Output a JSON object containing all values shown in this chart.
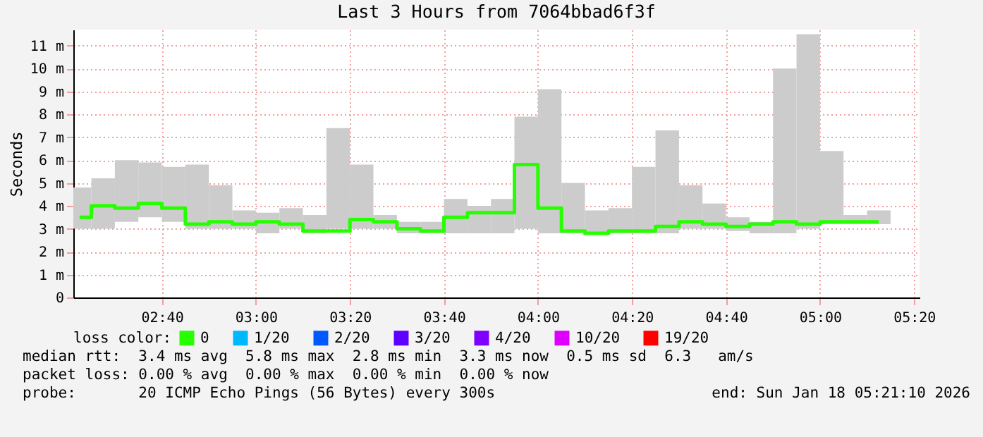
{
  "chart_data": {
    "type": "step",
    "title": "Last 3 Hours from 7064bbad6f3f",
    "ylabel": "Seconds",
    "legend_title": "loss color:",
    "x": [
      "2026-01-18T02:22:30",
      "2026-01-18T02:27:30",
      "2026-01-18T02:32:30",
      "2026-01-18T02:37:30",
      "2026-01-18T02:42:30",
      "2026-01-18T02:47:30",
      "2026-01-18T02:52:30",
      "2026-01-18T02:57:30",
      "2026-01-18T03:02:30",
      "2026-01-18T03:07:30",
      "2026-01-18T03:12:30",
      "2026-01-18T03:17:30",
      "2026-01-18T03:22:30",
      "2026-01-18T03:27:30",
      "2026-01-18T03:32:30",
      "2026-01-18T03:37:30",
      "2026-01-18T03:42:30",
      "2026-01-18T03:47:30",
      "2026-01-18T03:52:30",
      "2026-01-18T03:57:30",
      "2026-01-18T04:02:30",
      "2026-01-18T04:07:30",
      "2026-01-18T04:12:30",
      "2026-01-18T04:17:30",
      "2026-01-18T04:22:30",
      "2026-01-18T04:27:30",
      "2026-01-18T04:32:30",
      "2026-01-18T04:37:30",
      "2026-01-18T04:42:30",
      "2026-01-18T04:47:30",
      "2026-01-18T04:52:30",
      "2026-01-18T04:57:30",
      "2026-01-18T05:02:30",
      "2026-01-18T05:07:30",
      "2026-01-18T05:12:30"
    ],
    "series": [
      {
        "type": "bar",
        "color": "#cccccc",
        "base": [
          3.0,
          3.0,
          3.3,
          3.5,
          3.3,
          3.0,
          3.0,
          3.0,
          2.8,
          3.0,
          2.8,
          3.0,
          3.0,
          3.0,
          2.8,
          2.8,
          2.8,
          2.8,
          2.8,
          3.0,
          2.8,
          2.8,
          2.8,
          2.8,
          2.8,
          2.8,
          3.0,
          3.0,
          2.9,
          2.8,
          2.8,
          3.0,
          3.2,
          3.2,
          3.2
        ],
        "values": [
          1.8,
          2.2,
          2.7,
          2.4,
          2.4,
          2.8,
          1.9,
          0.8,
          0.9,
          0.9,
          0.8,
          4.4,
          2.8,
          0.6,
          0.5,
          0.5,
          1.5,
          1.2,
          1.5,
          4.9,
          6.3,
          2.2,
          1.0,
          1.1,
          2.9,
          4.5,
          1.9,
          1.1,
          0.6,
          0.5,
          7.2,
          8.5,
          3.2,
          0.4,
          0.6
        ]
      },
      {
        "name": "0",
        "color": "#26ff00",
        "values": [
          3.5,
          4.0,
          3.9,
          4.1,
          3.9,
          3.2,
          3.3,
          3.2,
          3.3,
          3.2,
          2.9,
          2.9,
          3.4,
          3.3,
          3.0,
          2.9,
          3.5,
          3.7,
          3.7,
          5.8,
          3.9,
          2.9,
          2.8,
          2.9,
          2.9,
          3.1,
          3.3,
          3.2,
          3.1,
          3.2,
          3.3,
          3.2,
          3.3,
          3.3,
          3.3
        ]
      },
      {
        "name": "1/20",
        "color": "#00b8ff",
        "values": [
          null,
          null,
          null,
          null,
          null,
          null,
          null,
          null,
          null,
          null,
          null,
          null,
          null,
          null,
          null,
          null,
          null,
          null,
          null,
          null,
          null,
          null,
          null,
          null,
          null,
          null,
          null,
          null,
          null,
          null,
          null,
          null,
          null,
          null,
          null
        ]
      },
      {
        "name": "2/20",
        "color": "#0059ff",
        "values": [
          null,
          null,
          null,
          null,
          null,
          null,
          null,
          null,
          null,
          null,
          null,
          null,
          null,
          null,
          null,
          null,
          null,
          null,
          null,
          null,
          null,
          null,
          null,
          null,
          null,
          null,
          null,
          null,
          null,
          null,
          null,
          null,
          null,
          null,
          null
        ]
      },
      {
        "name": "3/20",
        "color": "#5e00ff",
        "values": [
          null,
          null,
          null,
          null,
          null,
          null,
          null,
          null,
          null,
          null,
          null,
          null,
          null,
          null,
          null,
          null,
          null,
          null,
          null,
          null,
          null,
          null,
          null,
          null,
          null,
          null,
          null,
          null,
          null,
          null,
          null,
          null,
          null,
          null,
          null
        ]
      },
      {
        "name": "4/20",
        "color": "#7e00ff",
        "values": [
          null,
          null,
          null,
          null,
          null,
          null,
          null,
          null,
          null,
          null,
          null,
          null,
          null,
          null,
          null,
          null,
          null,
          null,
          null,
          null,
          null,
          null,
          null,
          null,
          null,
          null,
          null,
          null,
          null,
          null,
          null,
          null,
          null,
          null,
          null
        ]
      },
      {
        "name": "10/20",
        "color": "#dd00ff",
        "values": [
          null,
          null,
          null,
          null,
          null,
          null,
          null,
          null,
          null,
          null,
          null,
          null,
          null,
          null,
          null,
          null,
          null,
          null,
          null,
          null,
          null,
          null,
          null,
          null,
          null,
          null,
          null,
          null,
          null,
          null,
          null,
          null,
          null,
          null,
          null
        ]
      },
      {
        "name": "19/20",
        "color": "#ff0000",
        "values": [
          null,
          null,
          null,
          null,
          null,
          null,
          null,
          null,
          null,
          null,
          null,
          null,
          null,
          null,
          null,
          null,
          null,
          null,
          null,
          null,
          null,
          null,
          null,
          null,
          null,
          null,
          null,
          null,
          null,
          null,
          null,
          null,
          null,
          null,
          null
        ]
      }
    ],
    "xlim": [
      "2026-01-18T02:21:10",
      "2026-01-18T05:21:10"
    ],
    "xticks": [
      {
        "value": "2026-01-18T02:40",
        "label": "02:40"
      },
      {
        "value": "2026-01-18T03:00",
        "label": "03:00"
      },
      {
        "value": "2026-01-18T03:20",
        "label": "03:20"
      },
      {
        "value": "2026-01-18T03:40",
        "label": "03:40"
      },
      {
        "value": "2026-01-18T04:00",
        "label": "04:00"
      },
      {
        "value": "2026-01-18T04:20",
        "label": "04:20"
      },
      {
        "value": "2026-01-18T04:40",
        "label": "04:40"
      },
      {
        "value": "2026-01-18T05:00",
        "label": "05:00"
      },
      {
        "value": "2026-01-18T05:20",
        "label": "05:20"
      }
    ],
    "ylim": [
      0,
      11.7
    ],
    "yticks": [
      0,
      {
        "value": 1,
        "label": "1 m"
      },
      {
        "value": 2,
        "label": "2 m"
      },
      {
        "value": 3,
        "label": "3 m"
      },
      {
        "value": 4,
        "label": "4 m"
      },
      {
        "value": 5,
        "label": "5 m"
      },
      {
        "value": 6,
        "label": "6 m"
      },
      {
        "value": 7,
        "label": "7 m"
      },
      {
        "value": 8,
        "label": "8 m"
      },
      {
        "value": 9,
        "label": "9 m"
      },
      {
        "value": 10,
        "label": "10 m"
      },
      {
        "value": 11,
        "label": "11 m"
      }
    ],
    "grid": true,
    "legend": "bottom left",
    "annotations": [
      "median rtt:  3.4 ms avg  5.8 ms max  2.8 ms min  3.3 ms now  0.5 ms sd  6.3   am/s",
      "packet loss: 0.00 % avg  0.00 % max  0.00 % min  0.00 % now",
      "probe:       20 ICMP Echo Pings (56 Bytes) every 300s",
      "end: Sun Jan 18 05:21:10 2026"
    ]
  }
}
